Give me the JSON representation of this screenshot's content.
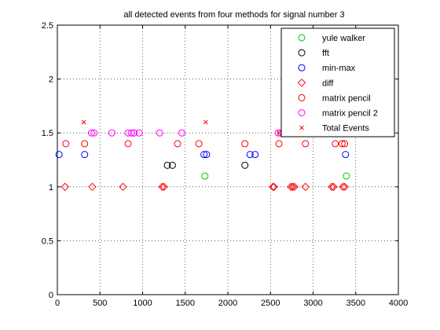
{
  "chart_data": {
    "type": "scatter",
    "title": "all detected events from four methods for signal number 3",
    "xlabel": "",
    "ylabel": "",
    "xlim": [
      0,
      4000
    ],
    "ylim": [
      0,
      2.5
    ],
    "xticks": [
      0,
      500,
      1000,
      1500,
      2000,
      2500,
      3000,
      3500,
      4000
    ],
    "yticks": [
      0,
      0.5,
      1,
      1.5,
      2,
      2.5
    ],
    "xtick_labels": [
      "0",
      "500",
      "1000",
      "1500",
      "2000",
      "2500",
      "3000",
      "3500",
      "4000"
    ],
    "ytick_labels": [
      "0",
      "0.5",
      "1",
      "1.5",
      "2",
      "2.5"
    ],
    "grid": true,
    "legend_position": "top-right",
    "series": [
      {
        "name": "yule walker",
        "marker": "circle",
        "color": "#00cc00",
        "points": [
          [
            1730,
            1.1
          ],
          [
            3390,
            1.1
          ]
        ]
      },
      {
        "name": "fft",
        "marker": "circle",
        "color": "#000000",
        "points": [
          [
            1290,
            1.2
          ],
          [
            1350,
            1.2
          ],
          [
            2200,
            1.2
          ]
        ]
      },
      {
        "name": "min-max",
        "marker": "circle",
        "color": "#0000ff",
        "points": [
          [
            20,
            1.3
          ],
          [
            320,
            1.3
          ],
          [
            1720,
            1.3
          ],
          [
            1750,
            1.3
          ],
          [
            2260,
            1.3
          ],
          [
            2320,
            1.3
          ],
          [
            3380,
            1.3
          ]
        ]
      },
      {
        "name": "diff",
        "marker": "diamond",
        "color": "#ff0000",
        "points": [
          [
            90,
            1.0
          ],
          [
            410,
            1.0
          ],
          [
            770,
            1.0
          ],
          [
            1230,
            1.0
          ],
          [
            1250,
            1.0
          ],
          [
            2530,
            1.0
          ],
          [
            2540,
            1.0
          ],
          [
            2740,
            1.0
          ],
          [
            2760,
            1.0
          ],
          [
            2780,
            1.0
          ],
          [
            2910,
            1.0
          ],
          [
            3220,
            1.0
          ],
          [
            3240,
            1.0
          ],
          [
            3350,
            1.0
          ],
          [
            3370,
            1.0
          ]
        ]
      },
      {
        "name": "matrix pencil",
        "marker": "circle",
        "color": "#ff0000",
        "points": [
          [
            100,
            1.4
          ],
          [
            320,
            1.4
          ],
          [
            830,
            1.4
          ],
          [
            1410,
            1.4
          ],
          [
            1660,
            1.4
          ],
          [
            2200,
            1.4
          ],
          [
            2600,
            1.4
          ],
          [
            2910,
            1.4
          ],
          [
            3260,
            1.4
          ],
          [
            3340,
            1.4
          ],
          [
            3370,
            1.4
          ]
        ]
      },
      {
        "name": "matrix pencil 2",
        "marker": "circle",
        "color": "#ff00ff",
        "points": [
          [
            400,
            1.5
          ],
          [
            430,
            1.5
          ],
          [
            640,
            1.5
          ],
          [
            830,
            1.5
          ],
          [
            870,
            1.5
          ],
          [
            900,
            1.5
          ],
          [
            960,
            1.5
          ],
          [
            1200,
            1.5
          ],
          [
            1460,
            1.5
          ],
          [
            2590,
            1.5
          ],
          [
            2620,
            1.5
          ]
        ]
      },
      {
        "name": "Total Events",
        "marker": "x",
        "color": "#ff0000",
        "points": [
          [
            310,
            1.6
          ],
          [
            1740,
            1.6
          ],
          [
            2600,
            1.5
          ]
        ]
      }
    ]
  }
}
